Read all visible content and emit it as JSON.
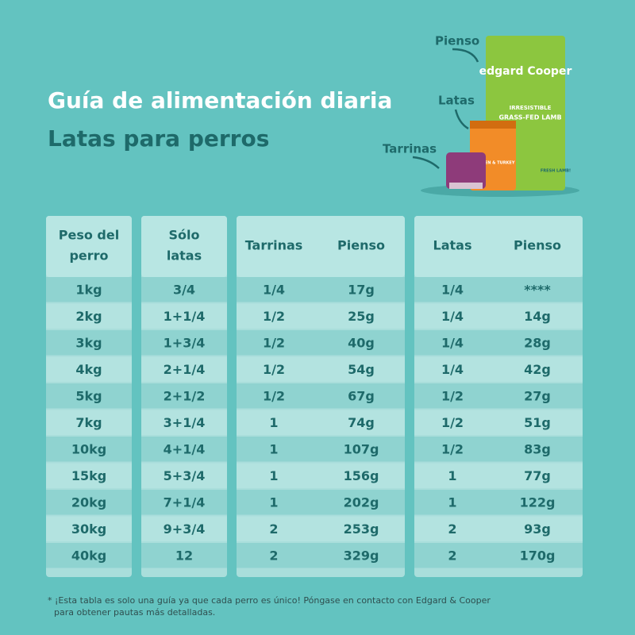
{
  "header": {
    "title": "Guía de alimentación diaria",
    "subtitle": "Latas para perros"
  },
  "products": {
    "labels": [
      "Pienso",
      "Latas",
      "Tarrinas"
    ],
    "brand": "edgard Cooper",
    "bag_line1": "IRRESISTIBLE",
    "bag_line2": "GRASS-FED LAMB",
    "can_text": "CHICKEN & TURKEY",
    "bag_badge": "FRESH LAMB!"
  },
  "table": {
    "headers": [
      [
        "Peso del",
        "perro"
      ],
      [
        "Sólo",
        "latas"
      ],
      [
        "Tarrinas"
      ],
      [
        "Pienso"
      ],
      [
        "Latas"
      ],
      [
        "Pienso"
      ]
    ],
    "rows": [
      [
        "1kg",
        "3/4",
        "1/4",
        "17g",
        "1/4",
        "****"
      ],
      [
        "2kg",
        "1+1/4",
        "1/2",
        "25g",
        "1/4",
        "14g"
      ],
      [
        "3kg",
        "1+3/4",
        "1/2",
        "40g",
        "1/4",
        "28g"
      ],
      [
        "4kg",
        "2+1/4",
        "1/2",
        "54g",
        "1/4",
        "42g"
      ],
      [
        "5kg",
        "2+1/2",
        "1/2",
        "67g",
        "1/2",
        "27g"
      ],
      [
        "7kg",
        "3+1/4",
        "1",
        "74g",
        "1/2",
        "51g"
      ],
      [
        "10kg",
        "4+1/4",
        "1",
        "107g",
        "1/2",
        "83g"
      ],
      [
        "15kg",
        "5+3/4",
        "1",
        "156g",
        "1",
        "77g"
      ],
      [
        "20kg",
        "7+1/4",
        "1",
        "202g",
        "1",
        "122g"
      ],
      [
        "30kg",
        "9+3/4",
        "2",
        "253g",
        "2",
        "93g"
      ],
      [
        "40kg",
        "12",
        "2",
        "329g",
        "2",
        "170g"
      ]
    ]
  },
  "footnote": [
    "* ¡Esta tabla es solo una guía ya que cada perro es único! Póngase en contacto con Edgard & Cooper",
    "para obtener pautas más detalladas."
  ]
}
